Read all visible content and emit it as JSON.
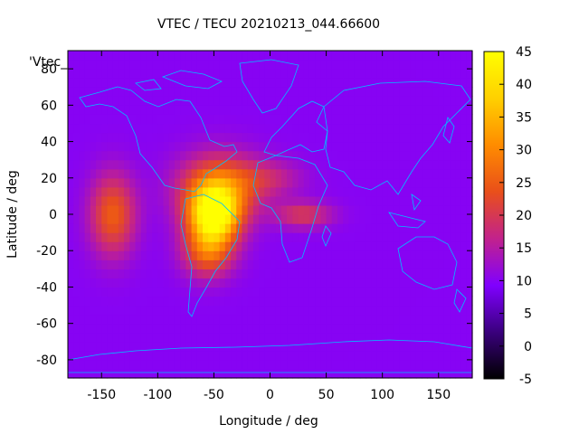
{
  "chart_data": {
    "type": "heatmap",
    "title": "VTEC / TECU 20210213_044.66600",
    "xlabel": "Longitude / deg",
    "ylabel": "Latitude / deg",
    "legend_key": "'Vtec_",
    "xlim": [
      -180,
      180
    ],
    "ylim": [
      -90,
      90
    ],
    "x_ticks": [
      -150,
      -100,
      -50,
      0,
      50,
      100,
      150
    ],
    "y_ticks": [
      -80,
      -60,
      -40,
      -20,
      0,
      20,
      40,
      60,
      80
    ],
    "colorbar": {
      "range": [
        -5,
        45
      ],
      "ticks": [
        -5,
        0,
        5,
        10,
        15,
        20,
        25,
        30,
        35,
        40,
        45
      ],
      "palette": [
        "#000000",
        "#3a007d",
        "#8000ff",
        "#c2228c",
        "#e94f1a",
        "#ff8c00",
        "#ffd000",
        "#ffff00"
      ]
    },
    "background_level": 10,
    "features": [
      {
        "lon": -50,
        "lat": 0,
        "value": 44,
        "slon": 22,
        "slat": 15
      },
      {
        "lon": -45,
        "lat": 15,
        "value": 28,
        "slon": 35,
        "slat": 18
      },
      {
        "lon": -55,
        "lat": -20,
        "value": 26,
        "slon": 22,
        "slat": 14
      },
      {
        "lon": -140,
        "lat": 0,
        "value": 25,
        "slon": 20,
        "slat": 22
      },
      {
        "lon": 30,
        "lat": 0,
        "value": 20,
        "slon": 25,
        "slat": 7
      },
      {
        "lon": 0,
        "lat": 20,
        "value": 16,
        "slon": 30,
        "slat": 10
      }
    ],
    "coastline_color": "#00bfff"
  }
}
